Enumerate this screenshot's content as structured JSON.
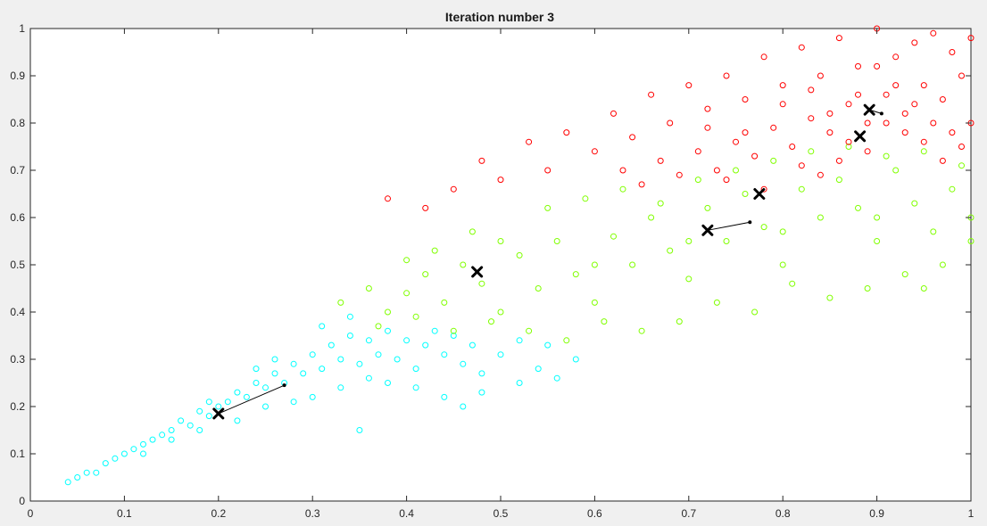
{
  "chart_data": {
    "type": "scatter",
    "title": "Iteration number 3",
    "xlabel": "",
    "ylabel": "",
    "xlim": [
      0,
      1
    ],
    "ylim": [
      0,
      1
    ],
    "xticks": [
      0,
      0.1,
      0.2,
      0.3,
      0.4,
      0.5,
      0.6,
      0.7,
      0.8,
      0.9,
      1
    ],
    "yticks": [
      0,
      0.1,
      0.2,
      0.3,
      0.4,
      0.5,
      0.6,
      0.7,
      0.8,
      0.9,
      1
    ],
    "xtick_labels": [
      "0",
      "0.1",
      "0.2",
      "0.3",
      "0.4",
      "0.5",
      "0.6",
      "0.7",
      "0.8",
      "0.9",
      "1"
    ],
    "ytick_labels": [
      "0",
      "0.1",
      "0.2",
      "0.3",
      "0.4",
      "0.5",
      "0.6",
      "0.7",
      "0.8",
      "0.9",
      "1"
    ],
    "grid": false,
    "legend": "none",
    "series": [
      {
        "color": "#00ffff",
        "marker": "open-circle",
        "points": [
          [
            0.04,
            0.04
          ],
          [
            0.05,
            0.05
          ],
          [
            0.06,
            0.06
          ],
          [
            0.07,
            0.06
          ],
          [
            0.08,
            0.08
          ],
          [
            0.09,
            0.09
          ],
          [
            0.1,
            0.1
          ],
          [
            0.11,
            0.11
          ],
          [
            0.12,
            0.12
          ],
          [
            0.13,
            0.13
          ],
          [
            0.14,
            0.14
          ],
          [
            0.15,
            0.15
          ],
          [
            0.16,
            0.17
          ],
          [
            0.17,
            0.16
          ],
          [
            0.18,
            0.19
          ],
          [
            0.19,
            0.18
          ],
          [
            0.2,
            0.2
          ],
          [
            0.21,
            0.21
          ],
          [
            0.22,
            0.23
          ],
          [
            0.23,
            0.22
          ],
          [
            0.24,
            0.25
          ],
          [
            0.25,
            0.24
          ],
          [
            0.26,
            0.27
          ],
          [
            0.27,
            0.25
          ],
          [
            0.28,
            0.29
          ],
          [
            0.29,
            0.27
          ],
          [
            0.3,
            0.31
          ],
          [
            0.31,
            0.28
          ],
          [
            0.32,
            0.33
          ],
          [
            0.33,
            0.3
          ],
          [
            0.34,
            0.35
          ],
          [
            0.35,
            0.29
          ],
          [
            0.36,
            0.34
          ],
          [
            0.37,
            0.31
          ],
          [
            0.38,
            0.36
          ],
          [
            0.39,
            0.3
          ],
          [
            0.4,
            0.34
          ],
          [
            0.41,
            0.28
          ],
          [
            0.42,
            0.33
          ],
          [
            0.43,
            0.36
          ],
          [
            0.44,
            0.31
          ],
          [
            0.45,
            0.35
          ],
          [
            0.46,
            0.29
          ],
          [
            0.47,
            0.33
          ],
          [
            0.48,
            0.27
          ],
          [
            0.5,
            0.31
          ],
          [
            0.52,
            0.25
          ],
          [
            0.54,
            0.28
          ],
          [
            0.56,
            0.26
          ],
          [
            0.58,
            0.3
          ],
          [
            0.3,
            0.22
          ],
          [
            0.33,
            0.24
          ],
          [
            0.36,
            0.26
          ],
          [
            0.25,
            0.2
          ],
          [
            0.28,
            0.21
          ],
          [
            0.22,
            0.17
          ],
          [
            0.15,
            0.13
          ],
          [
            0.12,
            0.1
          ],
          [
            0.18,
            0.15
          ],
          [
            0.38,
            0.25
          ],
          [
            0.41,
            0.24
          ],
          [
            0.44,
            0.22
          ],
          [
            0.46,
            0.2
          ],
          [
            0.48,
            0.23
          ],
          [
            0.35,
            0.15
          ],
          [
            0.26,
            0.3
          ],
          [
            0.31,
            0.37
          ],
          [
            0.34,
            0.39
          ],
          [
            0.24,
            0.28
          ],
          [
            0.19,
            0.21
          ],
          [
            0.52,
            0.34
          ],
          [
            0.55,
            0.33
          ]
        ]
      },
      {
        "color": "#80ff00",
        "marker": "open-circle",
        "points": [
          [
            0.33,
            0.42
          ],
          [
            0.36,
            0.45
          ],
          [
            0.38,
            0.4
          ],
          [
            0.4,
            0.44
          ],
          [
            0.42,
            0.48
          ],
          [
            0.44,
            0.42
          ],
          [
            0.46,
            0.5
          ],
          [
            0.48,
            0.46
          ],
          [
            0.5,
            0.4
          ],
          [
            0.52,
            0.52
          ],
          [
            0.54,
            0.45
          ],
          [
            0.56,
            0.55
          ],
          [
            0.58,
            0.48
          ],
          [
            0.6,
            0.42
          ],
          [
            0.62,
            0.56
          ],
          [
            0.64,
            0.5
          ],
          [
            0.66,
            0.6
          ],
          [
            0.68,
            0.53
          ],
          [
            0.7,
            0.47
          ],
          [
            0.72,
            0.62
          ],
          [
            0.74,
            0.55
          ],
          [
            0.76,
            0.65
          ],
          [
            0.78,
            0.58
          ],
          [
            0.8,
            0.5
          ],
          [
            0.82,
            0.66
          ],
          [
            0.84,
            0.6
          ],
          [
            0.86,
            0.68
          ],
          [
            0.88,
            0.62
          ],
          [
            0.9,
            0.55
          ],
          [
            0.92,
            0.7
          ],
          [
            0.94,
            0.63
          ],
          [
            0.96,
            0.57
          ],
          [
            0.98,
            0.66
          ],
          [
            1.0,
            0.6
          ],
          [
            0.97,
            0.5
          ],
          [
            0.93,
            0.48
          ],
          [
            0.89,
            0.45
          ],
          [
            0.85,
            0.43
          ],
          [
            0.81,
            0.46
          ],
          [
            0.77,
            0.4
          ],
          [
            0.73,
            0.42
          ],
          [
            0.69,
            0.38
          ],
          [
            0.65,
            0.36
          ],
          [
            0.61,
            0.38
          ],
          [
            0.57,
            0.34
          ],
          [
            0.53,
            0.36
          ],
          [
            0.49,
            0.38
          ],
          [
            0.45,
            0.36
          ],
          [
            0.41,
            0.39
          ],
          [
            0.37,
            0.37
          ],
          [
            0.55,
            0.62
          ],
          [
            0.59,
            0.64
          ],
          [
            0.63,
            0.66
          ],
          [
            0.67,
            0.63
          ],
          [
            0.71,
            0.68
          ],
          [
            0.75,
            0.7
          ],
          [
            0.79,
            0.72
          ],
          [
            0.83,
            0.74
          ],
          [
            0.87,
            0.75
          ],
          [
            0.91,
            0.73
          ],
          [
            0.95,
            0.74
          ],
          [
            0.99,
            0.71
          ],
          [
            0.5,
            0.55
          ],
          [
            0.47,
            0.57
          ],
          [
            0.43,
            0.53
          ],
          [
            0.4,
            0.51
          ],
          [
            0.6,
            0.5
          ],
          [
            0.7,
            0.55
          ],
          [
            0.8,
            0.57
          ],
          [
            0.9,
            0.6
          ],
          [
            1.0,
            0.55
          ],
          [
            0.95,
            0.45
          ]
        ]
      },
      {
        "color": "#ff0000",
        "marker": "open-circle",
        "points": [
          [
            0.38,
            0.64
          ],
          [
            0.42,
            0.62
          ],
          [
            0.45,
            0.66
          ],
          [
            0.48,
            0.72
          ],
          [
            0.5,
            0.68
          ],
          [
            0.53,
            0.76
          ],
          [
            0.55,
            0.7
          ],
          [
            0.57,
            0.78
          ],
          [
            0.6,
            0.74
          ],
          [
            0.62,
            0.82
          ],
          [
            0.64,
            0.77
          ],
          [
            0.66,
            0.86
          ],
          [
            0.68,
            0.8
          ],
          [
            0.7,
            0.88
          ],
          [
            0.72,
            0.83
          ],
          [
            0.74,
            0.9
          ],
          [
            0.76,
            0.85
          ],
          [
            0.78,
            0.94
          ],
          [
            0.8,
            0.88
          ],
          [
            0.82,
            0.96
          ],
          [
            0.84,
            0.9
          ],
          [
            0.86,
            0.98
          ],
          [
            0.88,
            0.92
          ],
          [
            0.9,
            1.0
          ],
          [
            0.92,
            0.94
          ],
          [
            0.94,
            0.97
          ],
          [
            0.96,
            0.99
          ],
          [
            0.98,
            0.95
          ],
          [
            1.0,
            0.98
          ],
          [
            0.99,
            0.9
          ],
          [
            0.97,
            0.85
          ],
          [
            0.95,
            0.88
          ],
          [
            0.93,
            0.82
          ],
          [
            0.91,
            0.86
          ],
          [
            0.89,
            0.8
          ],
          [
            0.87,
            0.84
          ],
          [
            0.85,
            0.78
          ],
          [
            0.83,
            0.81
          ],
          [
            0.81,
            0.75
          ],
          [
            0.79,
            0.79
          ],
          [
            0.77,
            0.73
          ],
          [
            0.75,
            0.76
          ],
          [
            0.73,
            0.7
          ],
          [
            0.71,
            0.74
          ],
          [
            0.69,
            0.69
          ],
          [
            0.67,
            0.72
          ],
          [
            0.65,
            0.67
          ],
          [
            0.63,
            0.7
          ],
          [
            1.0,
            0.8
          ],
          [
            0.99,
            0.75
          ],
          [
            0.98,
            0.78
          ],
          [
            0.97,
            0.72
          ],
          [
            0.96,
            0.8
          ],
          [
            0.95,
            0.76
          ],
          [
            0.94,
            0.84
          ],
          [
            0.93,
            0.78
          ],
          [
            0.92,
            0.88
          ],
          [
            0.91,
            0.8
          ],
          [
            0.9,
            0.92
          ],
          [
            0.89,
            0.74
          ],
          [
            0.88,
            0.86
          ],
          [
            0.87,
            0.76
          ],
          [
            0.86,
            0.72
          ],
          [
            0.85,
            0.82
          ],
          [
            0.84,
            0.69
          ],
          [
            0.83,
            0.87
          ],
          [
            0.82,
            0.71
          ],
          [
            0.8,
            0.84
          ],
          [
            0.78,
            0.66
          ],
          [
            0.76,
            0.78
          ],
          [
            0.74,
            0.68
          ],
          [
            0.72,
            0.79
          ]
        ]
      }
    ],
    "centroids": [
      {
        "color": "#00ffff",
        "path": [
          [
            0.2,
            0.185
          ],
          [
            0.27,
            0.245
          ]
        ]
      },
      {
        "color": "#80ff00",
        "path": [
          [
            0.475,
            0.485
          ],
          [
            0.475,
            0.485
          ]
        ]
      },
      {
        "color": "#80ff00",
        "path": [
          [
            0.72,
            0.573
          ],
          [
            0.765,
            0.59
          ]
        ]
      },
      {
        "color": "#ff0000",
        "path": [
          [
            0.775,
            0.65
          ],
          [
            0.775,
            0.65
          ]
        ]
      },
      {
        "color": "#ff0000",
        "path": [
          [
            0.892,
            0.828
          ],
          [
            0.905,
            0.82
          ]
        ]
      },
      {
        "color": "#ff0000",
        "path": [
          [
            0.882,
            0.772
          ],
          [
            0.882,
            0.772
          ]
        ]
      }
    ]
  }
}
